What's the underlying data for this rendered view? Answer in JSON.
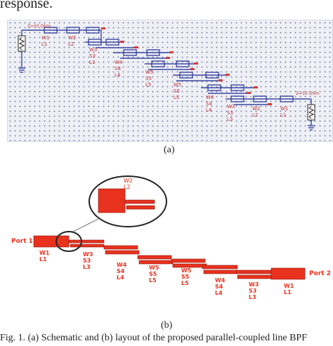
{
  "header": {
    "text": "response."
  },
  "schematic": {
    "caption": "(a)",
    "port_label": "Z=50 Ohm",
    "sections": [
      {
        "w": "W1",
        "s": "",
        "l": "L1"
      },
      {
        "w": "W2",
        "s": "",
        "l": "L2"
      },
      {
        "w": "W3",
        "s": "S3",
        "l": "L3"
      },
      {
        "w": "W4",
        "s": "S4",
        "l": "L4"
      },
      {
        "w": "W5",
        "s": "S5",
        "l": "L5"
      },
      {
        "w": "W5",
        "s": "S5",
        "l": "L5"
      },
      {
        "w": "W4",
        "s": "S4",
        "l": "L4"
      },
      {
        "w": "W3",
        "s": "S3",
        "l": "L3"
      },
      {
        "w": "W2",
        "s": "",
        "l": "L2"
      },
      {
        "w": "W1",
        "s": "",
        "l": "L1"
      }
    ]
  },
  "layout": {
    "caption": "(b)",
    "port1": "Port 1",
    "port2": "Port 2",
    "inset": {
      "w": "W2",
      "l": "L2"
    },
    "labels": [
      {
        "w": "W1",
        "s": "",
        "l": "L1"
      },
      {
        "w": "W3",
        "s": "S3",
        "l": "L3"
      },
      {
        "w": "W4",
        "s": "S4",
        "l": "L4"
      },
      {
        "w": "W5",
        "s": "S5",
        "l": "L5"
      },
      {
        "w": "W5",
        "s": "S5",
        "l": "L5"
      },
      {
        "w": "W4",
        "s": "S4",
        "l": "L4"
      },
      {
        "w": "W3",
        "s": "S3",
        "l": "L3"
      },
      {
        "w": "W1",
        "s": "",
        "l": "L1"
      }
    ]
  },
  "figure_caption": "Fig. 1. (a) Schematic and (b) layout of the proposed parallel-coupled line BPF"
}
